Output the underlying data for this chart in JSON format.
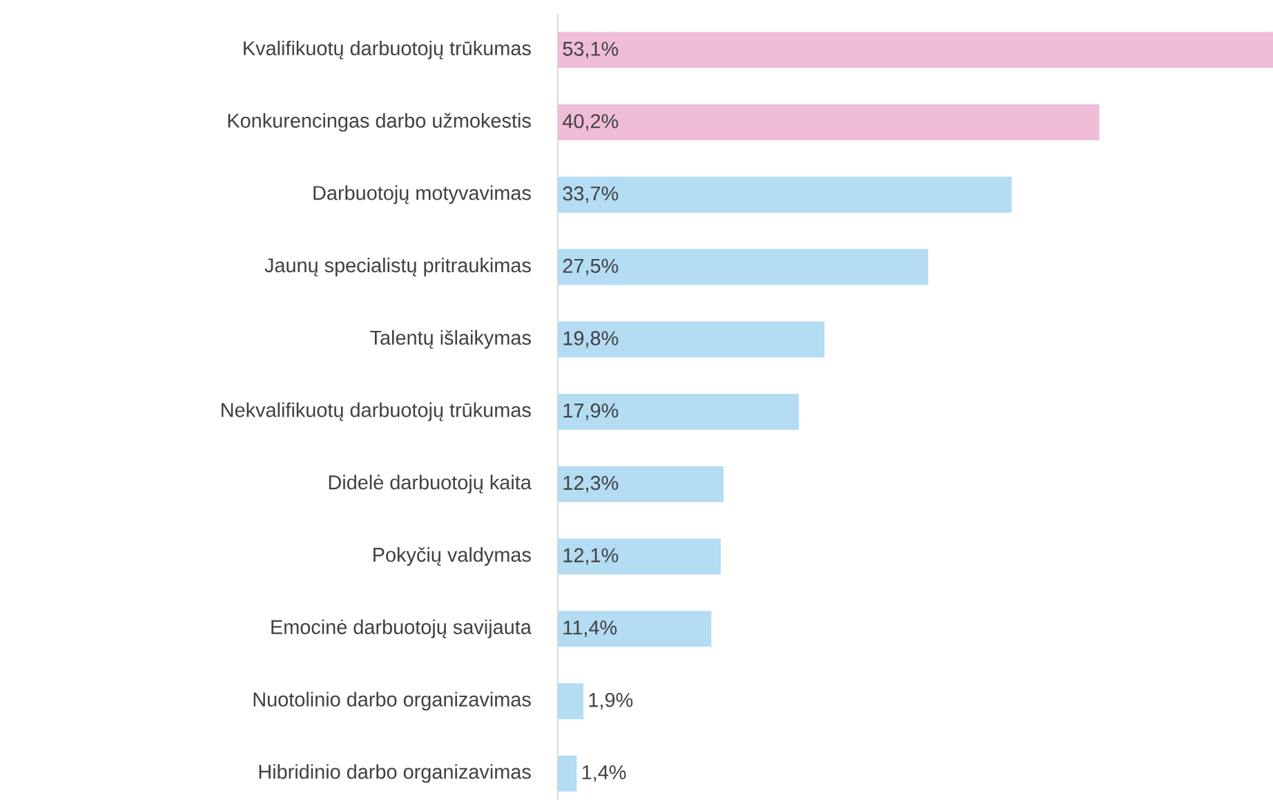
{
  "chart_data": {
    "type": "bar",
    "orientation": "horizontal",
    "categories": [
      "Kvalifikuotų darbuotojų trūkumas",
      "Konkurencingas darbo užmokestis",
      "Darbuotojų motyvavimas",
      "Jaunų specialistų pritraukimas",
      "Talentų išlaikymas",
      "Nekvalifikuotų darbuotojų trūkumas",
      "Didelė darbuotojų kaita",
      "Pokyčių valdymas",
      "Emocinė darbuotojų savijauta",
      "Nuotolinio darbo organizavimas",
      "Hibridinio darbo organizavimas"
    ],
    "values": [
      53.1,
      40.2,
      33.7,
      27.5,
      19.8,
      17.9,
      12.3,
      12.1,
      11.4,
      1.9,
      1.4
    ],
    "value_labels": [
      "53,1%",
      "40,2%",
      "33,7%",
      "27,5%",
      "19,8%",
      "17,9%",
      "12,3%",
      "12,1%",
      "11,4%",
      "1,9%",
      "1,4%"
    ],
    "colors": [
      "#f0bdd9",
      "#f0bdd9",
      "#b4dcf3",
      "#b4dcf3",
      "#b4dcf3",
      "#b4dcf3",
      "#b4dcf3",
      "#b4dcf3",
      "#b4dcf3",
      "#b4dcf3",
      "#b4dcf3"
    ]
  }
}
